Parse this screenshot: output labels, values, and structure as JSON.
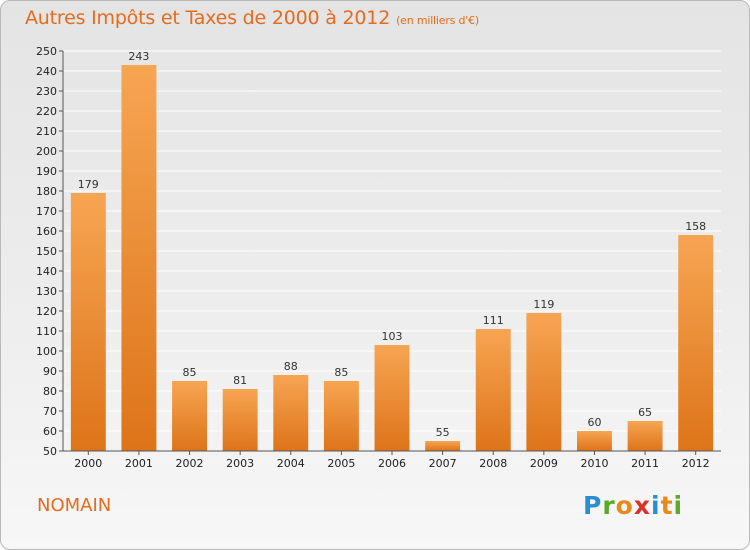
{
  "title": "Autres Impôts et Taxes de 2000 à 2012",
  "unit_label": "(en milliers d'€)",
  "commune": "NOMAIN",
  "logo": {
    "letters": [
      "P",
      "r",
      "o",
      "x",
      "i",
      "t",
      "i"
    ],
    "colors": [
      "#2a8dd4",
      "#5aaa2a",
      "#e88a1a",
      "#d8342a",
      "#2a8dd4",
      "#e88a1a",
      "#5aaa2a"
    ]
  },
  "colors": {
    "bar_light": "#f7a553",
    "bar_dark": "#dd7419",
    "title": "#e36c1e"
  },
  "chart_data": {
    "type": "bar",
    "title": "Autres Impôts et Taxes de 2000 à 2012",
    "categories": [
      "2000",
      "2001",
      "2002",
      "2003",
      "2004",
      "2005",
      "2006",
      "2007",
      "2008",
      "2009",
      "2010",
      "2011",
      "2012"
    ],
    "values": [
      179,
      243,
      85,
      81,
      88,
      85,
      103,
      55,
      111,
      119,
      60,
      65,
      158
    ],
    "ylim": [
      50,
      250
    ],
    "yticks": [
      50,
      60,
      70,
      80,
      90,
      100,
      110,
      120,
      130,
      140,
      150,
      160,
      170,
      180,
      190,
      200,
      210,
      220,
      230,
      240,
      250
    ],
    "grid": true,
    "xlabel": "",
    "ylabel": ""
  }
}
